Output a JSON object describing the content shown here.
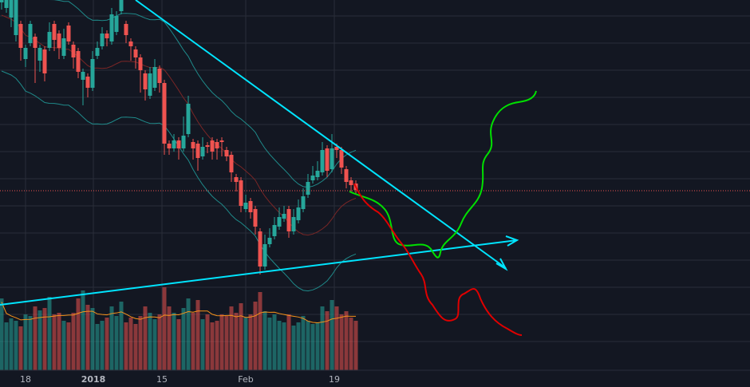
{
  "chart_data": {
    "type": "candlestick",
    "x_tick_labels": [
      "18",
      "2018",
      "15",
      "Feb",
      "19"
    ],
    "y_tick_labels": [],
    "colors": {
      "background": "#131722",
      "grid": "#2a2e39",
      "up": "#26a69a",
      "down": "#ef5350",
      "trendline": "#00e5ff",
      "bullish_path": "#00e000",
      "bearish_path": "#e00000",
      "volume_ma": "#f7931a",
      "bollinger": "#1f8a8a",
      "ma": "#8b2a2a"
    },
    "notes": "Price axis values are not printed in the screenshot; candle OHLC and volumes are given on a relative scale."
  }
}
